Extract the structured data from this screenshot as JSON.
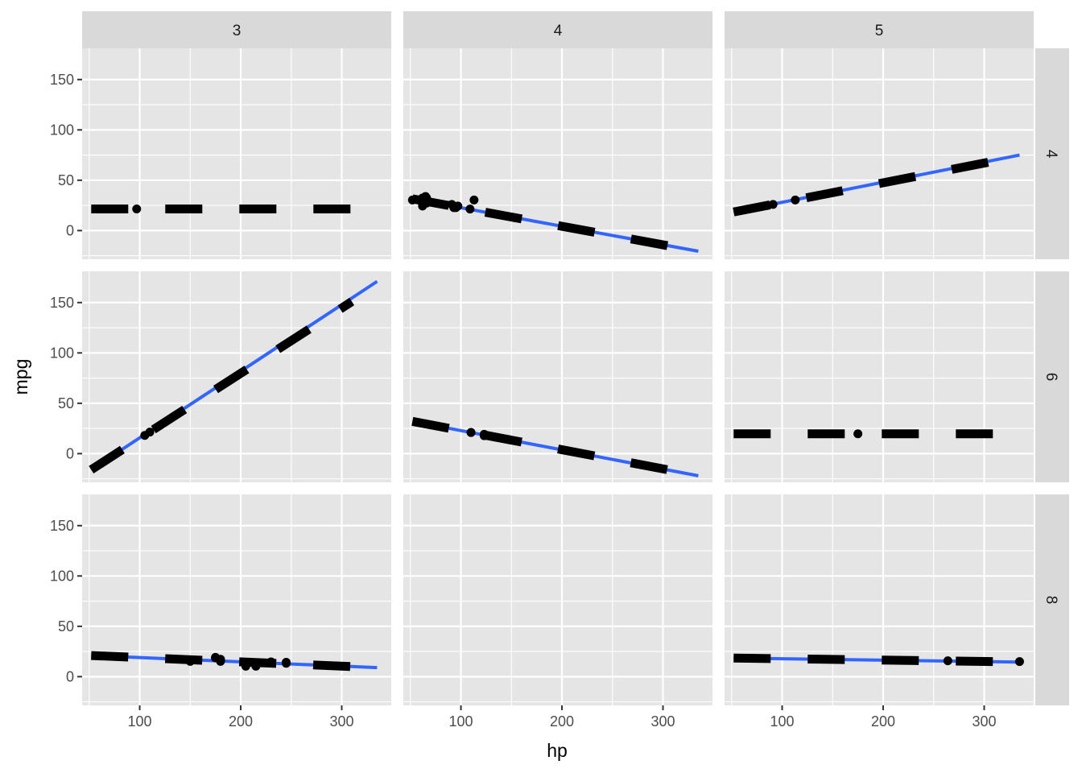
{
  "chart_data": {
    "type": "scatter",
    "xlabel": "hp",
    "ylabel": "mpg",
    "xlim": [
      43,
      349
    ],
    "ylim": [
      -28.5,
      181
    ],
    "x_ticks": [
      100,
      200,
      300
    ],
    "y_ticks": [
      0,
      50,
      100,
      150
    ],
    "col_facet_labels": [
      "3",
      "4",
      "5"
    ],
    "row_facet_labels": [
      "4",
      "6",
      "8"
    ],
    "grid": true,
    "colors": {
      "panel_background": "#e5e5e5",
      "grid_line": "#ffffff",
      "strip_background": "#d9d9d9",
      "points": "#000000",
      "fit_line": "#3366ff",
      "dashed_line": "#000000"
    },
    "panels": [
      {
        "row": 0,
        "col": 0,
        "points": [
          [
            97,
            21.5
          ]
        ],
        "fit": null,
        "dashed": [
          [
            52,
            21.5
          ],
          [
            310,
            21.5
          ]
        ]
      },
      {
        "row": 0,
        "col": 1,
        "points": [
          [
            52,
            30.4
          ],
          [
            62,
            32.4
          ],
          [
            65,
            33.9
          ],
          [
            66,
            32.4
          ],
          [
            66,
            27.3
          ],
          [
            91,
            26.0
          ],
          [
            93,
            22.8
          ],
          [
            95,
            22.8
          ],
          [
            97,
            24.4
          ],
          [
            109,
            21.4
          ],
          [
            113,
            30.4
          ],
          [
            62,
            24.4
          ]
        ],
        "fit": [
          [
            52,
            31.5
          ],
          [
            335,
            -20.5
          ]
        ],
        "dashed": [
          [
            52,
            31.5
          ],
          [
            310,
            -16
          ]
        ]
      },
      {
        "row": 0,
        "col": 2,
        "points": [
          [
            91,
            26.0
          ],
          [
            113,
            30.4
          ]
        ],
        "fit": [
          [
            52,
            18.5
          ],
          [
            335,
            75
          ]
        ],
        "dashed": [
          [
            52,
            18.5
          ],
          [
            310,
            69
          ]
        ]
      },
      {
        "row": 1,
        "col": 0,
        "points": [
          [
            105,
            18.1
          ],
          [
            110,
            21.4
          ]
        ],
        "fit": [
          [
            52,
            -16
          ],
          [
            335,
            171
          ]
        ],
        "dashed": [
          [
            52,
            -16
          ],
          [
            310,
            151
          ]
        ]
      },
      {
        "row": 1,
        "col": 1,
        "points": [
          [
            110,
            21.0
          ],
          [
            110,
            21.0
          ],
          [
            123,
            19.2
          ],
          [
            123,
            17.8
          ]
        ],
        "fit": [
          [
            52,
            32
          ],
          [
            335,
            -22
          ]
        ],
        "dashed": [
          [
            52,
            32
          ],
          [
            310,
            -17
          ]
        ]
      },
      {
        "row": 1,
        "col": 2,
        "points": [
          [
            175,
            19.7
          ]
        ],
        "fit": null,
        "dashed": [
          [
            52,
            19.7
          ],
          [
            310,
            19.7
          ]
        ]
      },
      {
        "row": 2,
        "col": 0,
        "points": [
          [
            150,
            15.5
          ],
          [
            150,
            15.2
          ],
          [
            175,
            18.7
          ],
          [
            180,
            16.4
          ],
          [
            180,
            17.3
          ],
          [
            180,
            15.2
          ],
          [
            205,
            10.4
          ],
          [
            215,
            10.4
          ],
          [
            230,
            14.7
          ],
          [
            245,
            13.3
          ],
          [
            245,
            14.3
          ],
          [
            175,
            19.2
          ]
        ],
        "fit": [
          [
            52,
            21
          ],
          [
            335,
            9
          ]
        ],
        "dashed": [
          [
            52,
            21
          ],
          [
            310,
            10
          ]
        ]
      },
      {
        "row": 2,
        "col": 1,
        "points": [],
        "fit": null,
        "dashed": null
      },
      {
        "row": 2,
        "col": 2,
        "points": [
          [
            264,
            15.8
          ],
          [
            335,
            15.0
          ]
        ],
        "fit": [
          [
            52,
            18.5
          ],
          [
            335,
            14.5
          ]
        ],
        "dashed": [
          [
            52,
            18.5
          ],
          [
            310,
            15
          ]
        ]
      }
    ]
  }
}
